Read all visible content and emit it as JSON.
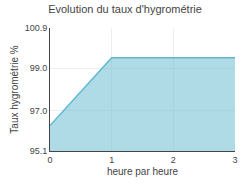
{
  "chart_data": {
    "type": "area",
    "title": "Evolution du taux d'hygrométrie",
    "x_label": "heure par heure",
    "y_label": "Taux hygrométrie %",
    "x": [
      0,
      1,
      3
    ],
    "values": [
      96.3,
      99.5,
      99.5
    ],
    "color": "#60b8d0",
    "xlim": [
      0,
      3
    ],
    "xticks": [
      0,
      1,
      2,
      3
    ],
    "ylim": [
      95.1,
      100.9
    ],
    "yticks": [
      95.1,
      {
        "value": 97.0,
        "label": "97.0"
      },
      {
        "value": 99.0,
        "label": "99.0"
      },
      100.9
    ],
    "grid": true
  }
}
